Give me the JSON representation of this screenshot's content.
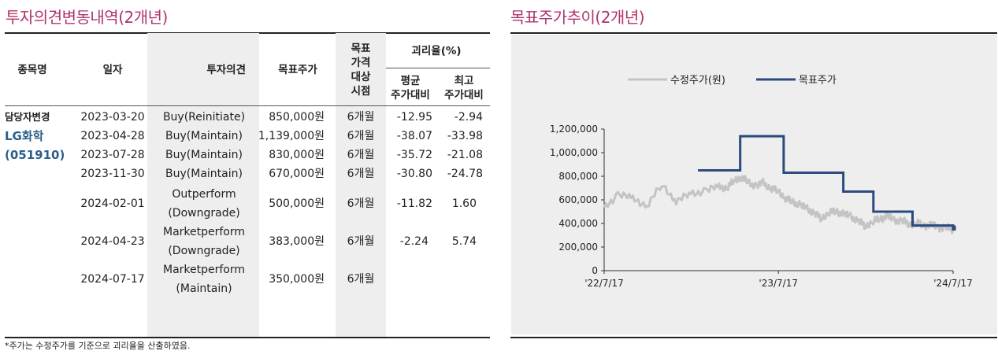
{
  "left_title": "투자의견변동내역(2개년)",
  "right_title": "목표주가추이(2개년)",
  "table": {
    "headers": {
      "company": "종목명",
      "date": "일자",
      "opinion": "투자의견",
      "target": "목표주가",
      "target_basis_lines": [
        "목표",
        "가격",
        "대상",
        "시점"
      ],
      "disparity": "괴리율(%)",
      "avg_lines": [
        "평균",
        "주가대비"
      ],
      "max_lines": [
        "최고",
        "주가대비"
      ]
    },
    "analyst_change": "담당자변경",
    "company_name": "LG화학",
    "company_code": "(051910)",
    "rows": [
      {
        "date": "2023-03-20",
        "opinion": [
          "Buy(Reinitiate)"
        ],
        "target": "850,000원",
        "basis": "6개월",
        "avg": "-12.95",
        "max": "-2.94"
      },
      {
        "date": "2023-04-28",
        "opinion": [
          "Buy(Maintain)"
        ],
        "target": "1,139,000원",
        "basis": "6개월",
        "avg": "-38.07",
        "max": "-33.98"
      },
      {
        "date": "2023-07-28",
        "opinion": [
          "Buy(Maintain)"
        ],
        "target": "830,000원",
        "basis": "6개월",
        "avg": "-35.72",
        "max": "-21.08"
      },
      {
        "date": "2023-11-30",
        "opinion": [
          "Buy(Maintain)"
        ],
        "target": "670,000원",
        "basis": "6개월",
        "avg": "-30.80",
        "max": "-24.78"
      },
      {
        "date": "2024-02-01",
        "opinion": [
          "Outperform",
          "(Downgrade)"
        ],
        "target": "500,000원",
        "basis": "6개월",
        "avg": "-11.82",
        "max": "1.60"
      },
      {
        "date": "2024-04-23",
        "opinion": [
          "Marketperform",
          "(Downgrade)"
        ],
        "target": "383,000원",
        "basis": "6개월",
        "avg": "-2.24",
        "max": "5.74"
      },
      {
        "date": "2024-07-17",
        "opinion": [
          "Marketperform",
          "(Maintain)"
        ],
        "target": "350,000원",
        "basis": "6개월",
        "avg": "",
        "max": ""
      }
    ],
    "footnote": "*주가는 수정주가를 기준으로 괴리율을 산출하였음."
  },
  "chart_data": {
    "type": "line",
    "legend": [
      "수정주가(원)",
      "목표주가"
    ],
    "legend_position": "top",
    "x_ticks": [
      "'22/7/17",
      "'23/7/17",
      "'24/7/17"
    ],
    "y_ticks": [
      "0",
      "200,000",
      "400,000",
      "600,000",
      "800,000",
      "1,000,000",
      "1,200,000"
    ],
    "ylim": [
      0,
      1200000
    ],
    "x_range": [
      "2022-07-17",
      "2024-07-17"
    ],
    "colors": {
      "price": "#c4c4c4",
      "target": "#2b4a7e"
    },
    "series": [
      {
        "name": "수정주가(원)",
        "x": [
          "2022-07-17",
          "2022-08-15",
          "2022-09-15",
          "2022-10-15",
          "2022-11-15",
          "2022-12-15",
          "2023-01-15",
          "2023-02-15",
          "2023-03-15",
          "2023-04-01",
          "2023-04-15",
          "2023-05-01",
          "2023-05-15",
          "2023-06-01",
          "2023-06-15",
          "2023-07-01",
          "2023-07-15",
          "2023-08-01",
          "2023-08-15",
          "2023-09-01",
          "2023-09-15",
          "2023-10-01",
          "2023-10-15",
          "2023-11-01",
          "2023-11-15",
          "2023-12-01",
          "2023-12-15",
          "2024-01-01",
          "2024-01-15",
          "2024-02-01",
          "2024-02-15",
          "2024-03-01",
          "2024-03-15",
          "2024-04-01",
          "2024-04-15",
          "2024-05-01",
          "2024-05-15",
          "2024-06-01",
          "2024-06-15",
          "2024-07-01",
          "2024-07-17"
        ],
        "values": [
          520000,
          660000,
          600000,
          560000,
          720000,
          600000,
          640000,
          690000,
          700000,
          710000,
          760000,
          800000,
          740000,
          720000,
          740000,
          700000,
          680000,
          620000,
          580000,
          560000,
          520000,
          490000,
          440000,
          500000,
          500000,
          480000,
          460000,
          420000,
          380000,
          420000,
          440000,
          460000,
          430000,
          420000,
          400000,
          400000,
          390000,
          380000,
          370000,
          360000,
          350000
        ]
      },
      {
        "name": "목표주가",
        "x": [
          "2023-03-20",
          "2023-04-28",
          "2023-07-28",
          "2023-11-30",
          "2024-02-01",
          "2024-04-23",
          "2024-07-17"
        ],
        "values": [
          850000,
          1139000,
          830000,
          670000,
          500000,
          383000,
          350000
        ],
        "end_value": 383000
      }
    ]
  }
}
